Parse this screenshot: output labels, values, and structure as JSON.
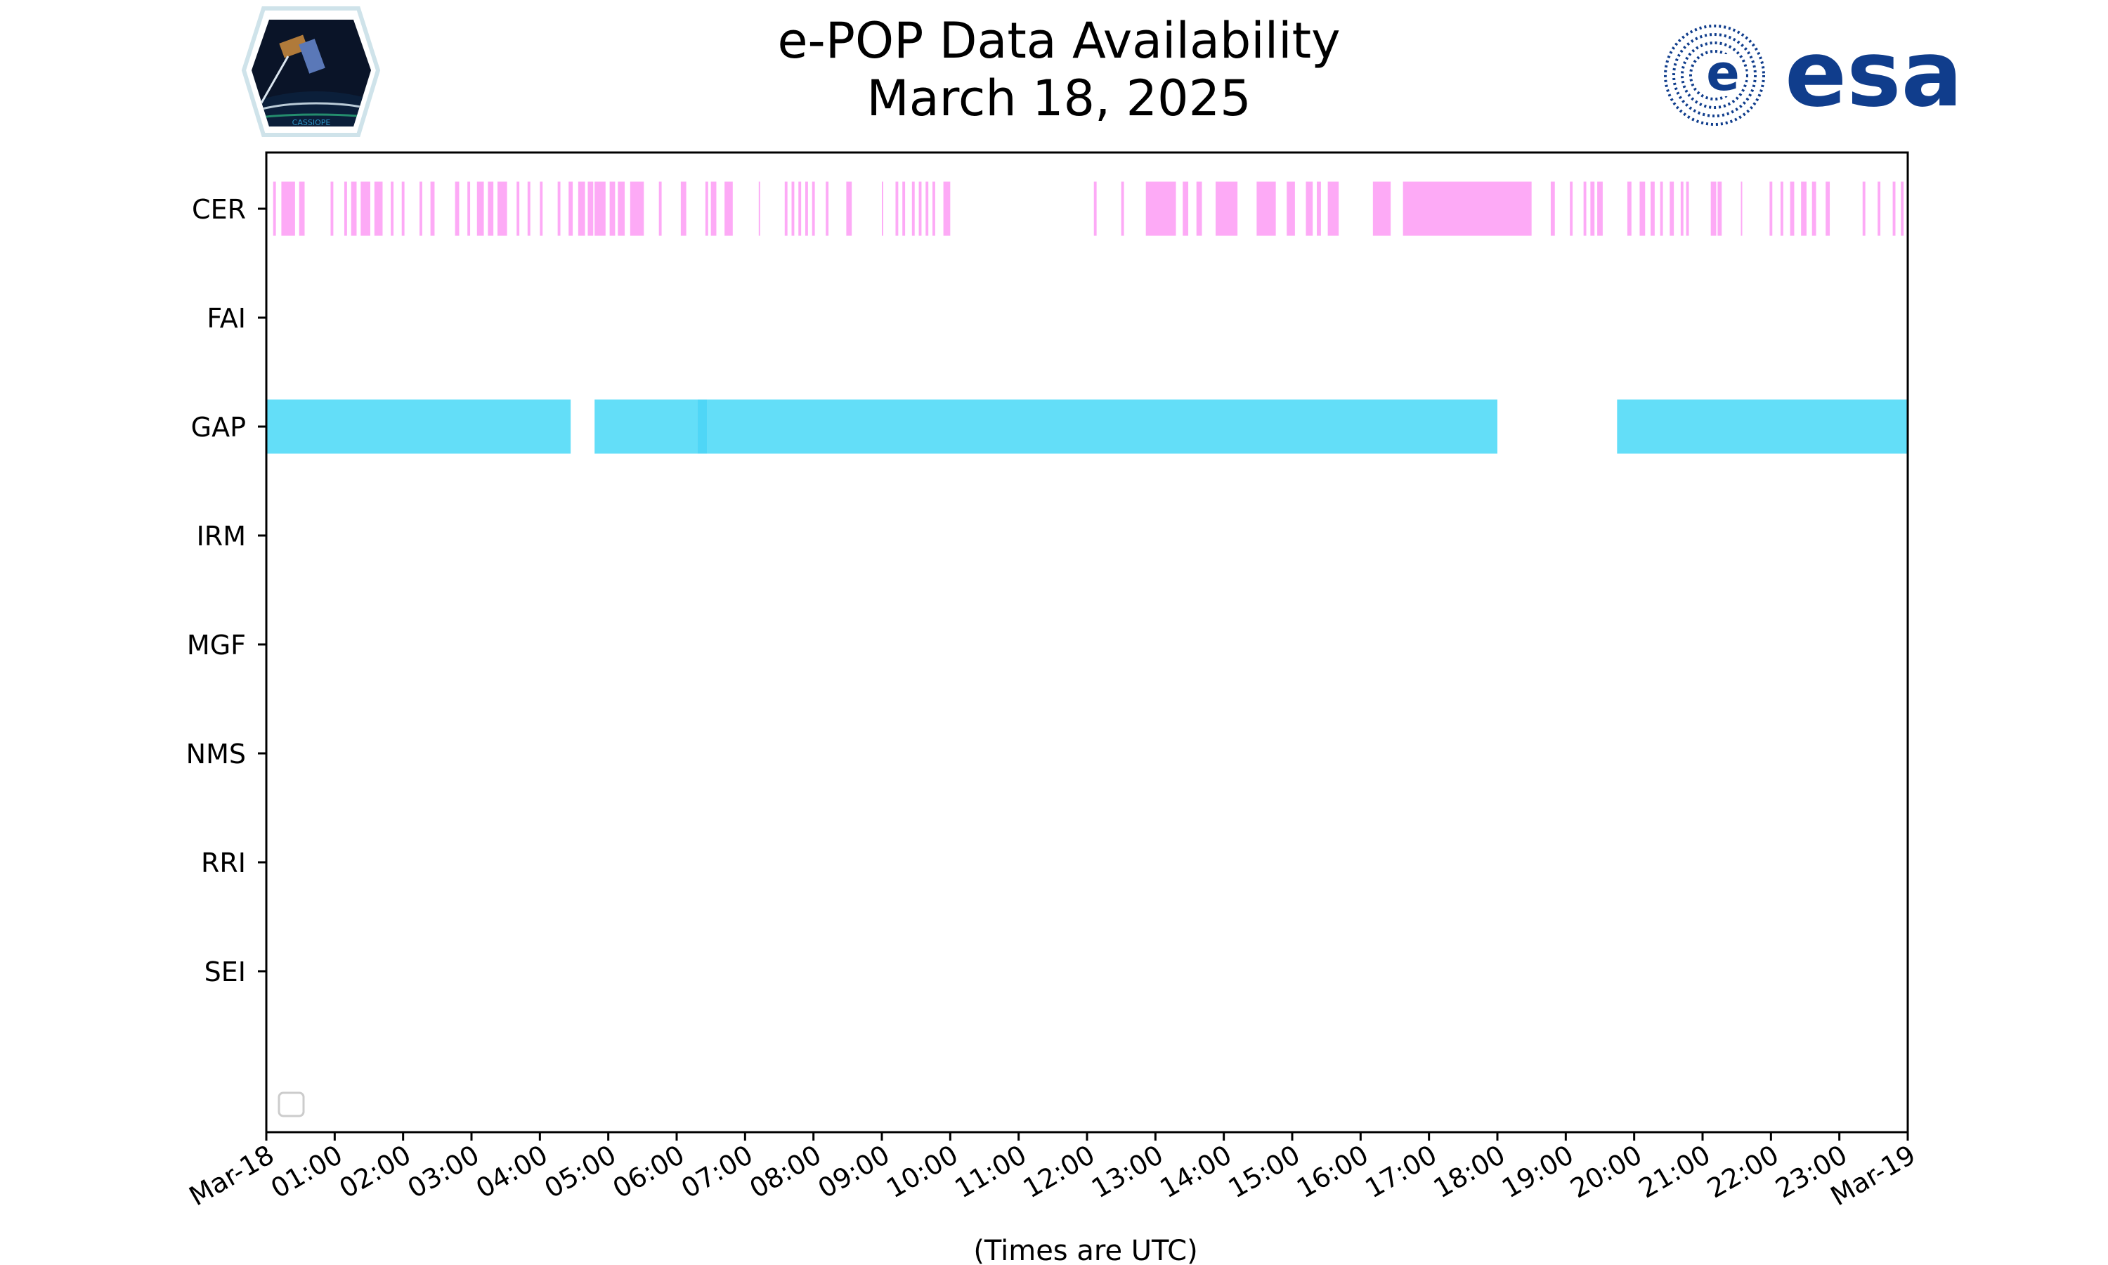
{
  "chart_data": {
    "type": "timeline",
    "title": "e-POP Data Availability",
    "subtitle": "March 18, 2025",
    "xlabel": "(Times are UTC)",
    "ylabel": "",
    "x_unit": "hours (UTC)",
    "xlim": [
      0,
      24
    ],
    "x_tick_labels": [
      "Mar-18",
      "01:00",
      "02:00",
      "03:00",
      "04:00",
      "05:00",
      "06:00",
      "07:00",
      "08:00",
      "09:00",
      "10:00",
      "11:00",
      "12:00",
      "13:00",
      "14:00",
      "15:00",
      "16:00",
      "17:00",
      "18:00",
      "19:00",
      "20:00",
      "21:00",
      "22:00",
      "23:00",
      "Mar-19"
    ],
    "categories": [
      "CER",
      "FAI",
      "GAP",
      "IRM",
      "MGF",
      "NMS",
      "RRI",
      "SEI"
    ],
    "grid": false,
    "legend": "lower-left (empty)",
    "colors": {
      "CER": "#fdaaf6",
      "GAP": "#63def8",
      "GAP_overlap": "#4fd6f6"
    },
    "series": [
      {
        "category": "CER",
        "intervals": [
          [
            0.1,
            0.14
          ],
          [
            0.22,
            0.42
          ],
          [
            0.48,
            0.56
          ],
          [
            0.94,
            0.98
          ],
          [
            1.14,
            1.18
          ],
          [
            1.24,
            1.32
          ],
          [
            1.38,
            1.52
          ],
          [
            1.58,
            1.7
          ],
          [
            1.82,
            1.86
          ],
          [
            1.98,
            2.02
          ],
          [
            2.24,
            2.28
          ],
          [
            2.4,
            2.46
          ],
          [
            2.76,
            2.82
          ],
          [
            2.94,
            2.98
          ],
          [
            3.08,
            3.18
          ],
          [
            3.24,
            3.32
          ],
          [
            3.38,
            3.52
          ],
          [
            3.66,
            3.7
          ],
          [
            3.82,
            3.86
          ],
          [
            4.0,
            4.04
          ],
          [
            4.26,
            4.3
          ],
          [
            4.42,
            4.48
          ],
          [
            4.56,
            4.66
          ],
          [
            4.7,
            4.78
          ],
          [
            4.8,
            4.96
          ],
          [
            5.02,
            5.1
          ],
          [
            5.14,
            5.24
          ],
          [
            5.32,
            5.52
          ],
          [
            5.74,
            5.78
          ],
          [
            6.06,
            6.14
          ],
          [
            6.42,
            6.46
          ],
          [
            6.5,
            6.58
          ],
          [
            6.7,
            6.82
          ],
          [
            7.2,
            7.22
          ],
          [
            7.58,
            7.62
          ],
          [
            7.68,
            7.72
          ],
          [
            7.78,
            7.82
          ],
          [
            7.88,
            7.92
          ],
          [
            7.98,
            8.02
          ],
          [
            8.18,
            8.22
          ],
          [
            8.48,
            8.56
          ],
          [
            9.0,
            9.02
          ],
          [
            9.2,
            9.24
          ],
          [
            9.3,
            9.34
          ],
          [
            9.44,
            9.48
          ],
          [
            9.54,
            9.58
          ],
          [
            9.64,
            9.68
          ],
          [
            9.74,
            9.78
          ],
          [
            9.9,
            10.0
          ],
          [
            12.1,
            12.14
          ],
          [
            12.5,
            12.54
          ],
          [
            12.86,
            13.3
          ],
          [
            13.4,
            13.48
          ],
          [
            13.6,
            13.68
          ],
          [
            13.88,
            14.2
          ],
          [
            14.48,
            14.76
          ],
          [
            14.92,
            15.04
          ],
          [
            15.2,
            15.3
          ],
          [
            15.36,
            15.42
          ],
          [
            15.52,
            15.68
          ],
          [
            16.18,
            16.44
          ],
          [
            16.62,
            18.5
          ],
          [
            18.78,
            18.84
          ],
          [
            19.06,
            19.1
          ],
          [
            19.26,
            19.3
          ],
          [
            19.36,
            19.42
          ],
          [
            19.46,
            19.54
          ],
          [
            19.9,
            19.96
          ],
          [
            20.08,
            20.16
          ],
          [
            20.24,
            20.3
          ],
          [
            20.38,
            20.42
          ],
          [
            20.52,
            20.58
          ],
          [
            20.68,
            20.72
          ],
          [
            20.76,
            20.8
          ],
          [
            21.12,
            21.2
          ],
          [
            21.22,
            21.28
          ],
          [
            21.56,
            21.58
          ],
          [
            21.98,
            22.02
          ],
          [
            22.14,
            22.18
          ],
          [
            22.28,
            22.34
          ],
          [
            22.44,
            22.52
          ],
          [
            22.6,
            22.66
          ],
          [
            22.8,
            22.86
          ],
          [
            23.34,
            23.38
          ],
          [
            23.56,
            23.6
          ],
          [
            23.78,
            23.82
          ],
          [
            23.9,
            23.94
          ]
        ]
      },
      {
        "category": "FAI",
        "intervals": []
      },
      {
        "category": "GAP",
        "intervals": [
          [
            0.0,
            4.45
          ],
          [
            4.8,
            6.3
          ],
          [
            6.3,
            6.45
          ],
          [
            6.45,
            18.0
          ],
          [
            19.75,
            24.0
          ]
        ]
      },
      {
        "category": "IRM",
        "intervals": []
      },
      {
        "category": "MGF",
        "intervals": []
      },
      {
        "category": "NMS",
        "intervals": []
      },
      {
        "category": "RRI",
        "intervals": []
      },
      {
        "category": "SEI",
        "intervals": []
      }
    ]
  },
  "logos": {
    "left": {
      "name": "cassiope-mission-logo",
      "text": "CASSIOPE"
    },
    "right": {
      "name": "esa-logo",
      "text": "esa"
    }
  }
}
